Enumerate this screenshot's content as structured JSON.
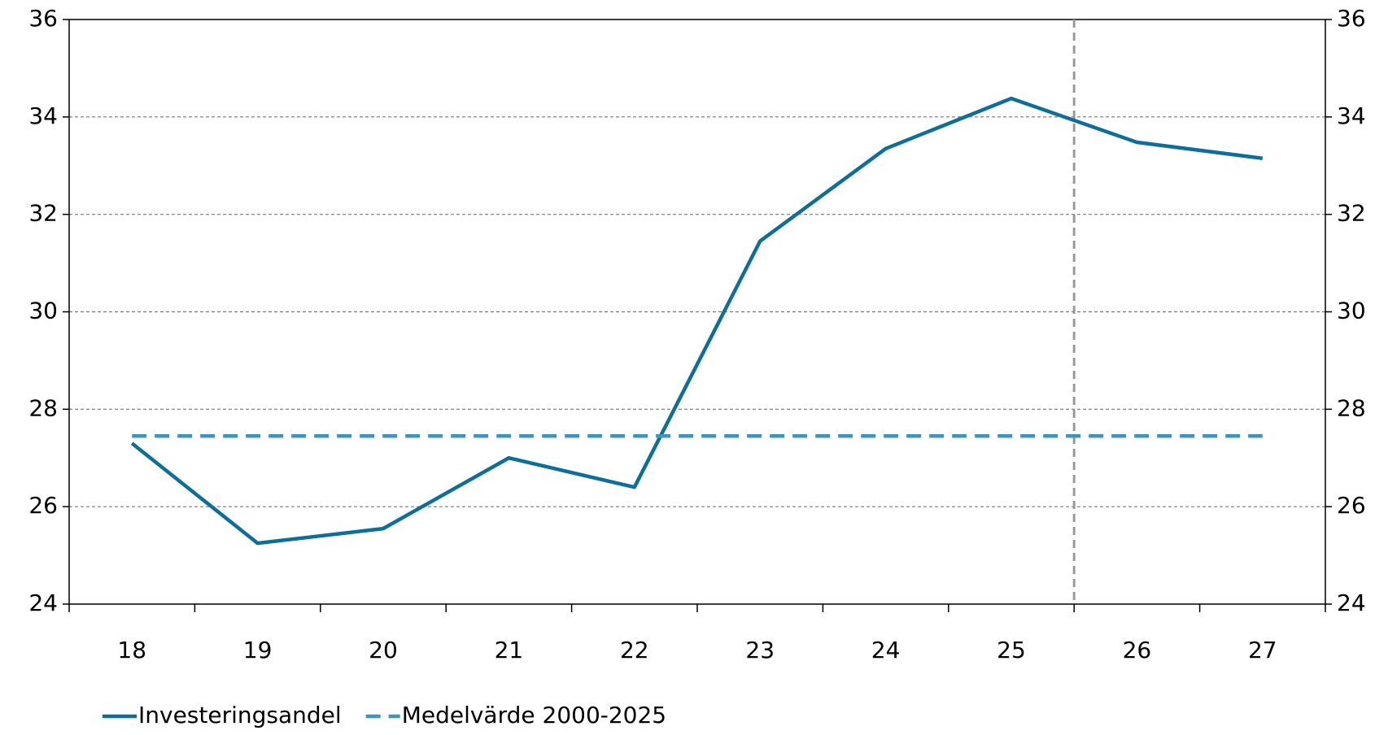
{
  "chart_data": {
    "type": "line",
    "categories": [
      "18",
      "19",
      "20",
      "21",
      "22",
      "23",
      "24",
      "25",
      "26",
      "27"
    ],
    "series": [
      {
        "name": "Investeringsandel",
        "color": "#0e6e9a",
        "dash": false,
        "values": [
          27.3,
          25.25,
          25.55,
          27.0,
          26.4,
          31.45,
          33.35,
          34.38,
          33.48,
          33.15
        ]
      },
      {
        "name": "Medelvärde 2000-2025",
        "color": "#3f93bd",
        "dash": true,
        "values": [
          27.45,
          27.45,
          27.45,
          27.45,
          27.45,
          27.45,
          27.45,
          27.45,
          27.45,
          27.45
        ]
      }
    ],
    "ylim": [
      24,
      36
    ],
    "yticks": [
      24,
      26,
      28,
      30,
      32,
      34,
      36
    ],
    "y2lim": [
      24,
      36
    ],
    "y2ticks": [
      24,
      26,
      28,
      30,
      32,
      34,
      36
    ],
    "grid": true,
    "forecast_from": "26",
    "legend": "bottom"
  }
}
